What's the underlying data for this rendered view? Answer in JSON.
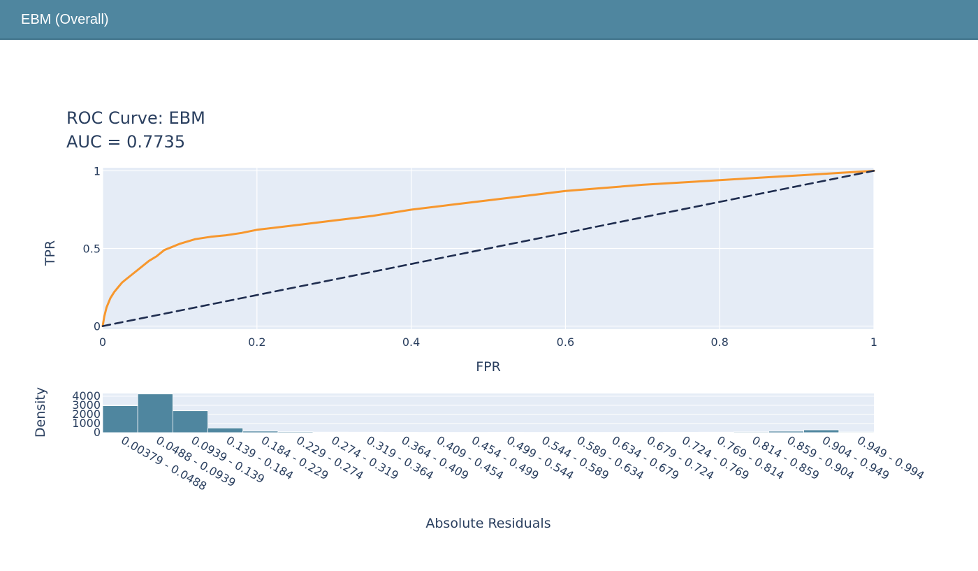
{
  "window": {
    "title": "EBM (Overall)"
  },
  "chart_data": [
    {
      "type": "line",
      "title": "ROC Curve: EBM",
      "subtitle": "AUC = 0.7735",
      "xlabel": "FPR",
      "ylabel": "TPR",
      "xlim": [
        0,
        1
      ],
      "ylim": [
        -0.02,
        1.02
      ],
      "x_ticks": [
        "0",
        "0.2",
        "0.4",
        "0.6",
        "0.8",
        "1"
      ],
      "x_tick_values": [
        0,
        0.2,
        0.4,
        0.6,
        0.8,
        1
      ],
      "y_ticks": [
        "0",
        "0.5",
        "1"
      ],
      "y_tick_values": [
        0,
        0.5,
        1
      ],
      "grid": true,
      "series": [
        {
          "color": "#f7972d",
          "style": "solid",
          "x": [
            0,
            0.002,
            0.005,
            0.01,
            0.015,
            0.02,
            0.025,
            0.03,
            0.04,
            0.05,
            0.06,
            0.07,
            0.08,
            0.09,
            0.1,
            0.12,
            0.14,
            0.16,
            0.18,
            0.2,
            0.25,
            0.3,
            0.35,
            0.4,
            0.45,
            0.5,
            0.55,
            0.6,
            0.65,
            0.7,
            0.75,
            0.8,
            0.85,
            0.9,
            0.95,
            1
          ],
          "y": [
            0,
            0.06,
            0.12,
            0.18,
            0.22,
            0.25,
            0.28,
            0.3,
            0.34,
            0.38,
            0.42,
            0.45,
            0.49,
            0.51,
            0.53,
            0.56,
            0.575,
            0.585,
            0.6,
            0.62,
            0.65,
            0.68,
            0.71,
            0.75,
            0.78,
            0.81,
            0.84,
            0.87,
            0.89,
            0.91,
            0.925,
            0.94,
            0.955,
            0.97,
            0.985,
            1
          ]
        },
        {
          "color": "#1f2d4f",
          "style": "dashed",
          "x": [
            0,
            1
          ],
          "y": [
            0,
            1
          ]
        }
      ]
    },
    {
      "type": "bar",
      "xlabel": "Absolute Residuals",
      "ylabel": "Density",
      "ylim": [
        0,
        4300
      ],
      "y_ticks": [
        "0",
        "1000",
        "2000",
        "3000",
        "4000"
      ],
      "y_tick_values": [
        0,
        1000,
        2000,
        3000,
        4000
      ],
      "color": "#4f869f",
      "categories": [
        "0.00379 - 0.0488",
        "0.0488 - 0.0939",
        "0.0939 - 0.139",
        "0.139 - 0.184",
        "0.184 - 0.229",
        "0.229 - 0.274",
        "0.274 - 0.319",
        "0.319 - 0.364",
        "0.364 - 0.409",
        "0.409 - 0.454",
        "0.454 - 0.499",
        "0.499 - 0.544",
        "0.544 - 0.589",
        "0.589 - 0.634",
        "0.634 - 0.679",
        "0.679 - 0.724",
        "0.724 - 0.769",
        "0.769 - 0.814",
        "0.814 - 0.859",
        "0.859 - 0.904",
        "0.904 - 0.949",
        "0.949 - 0.994"
      ],
      "values": [
        2950,
        4250,
        2400,
        500,
        160,
        90,
        60,
        50,
        40,
        30,
        30,
        40,
        30,
        30,
        30,
        30,
        40,
        50,
        80,
        150,
        300,
        70
      ]
    }
  ]
}
